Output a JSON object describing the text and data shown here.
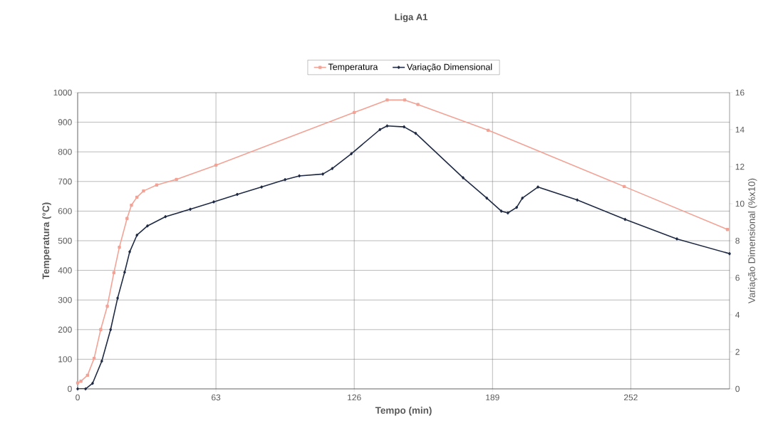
{
  "chart_data": {
    "type": "line",
    "title": "Liga A1",
    "xlabel": "Tempo (min)",
    "ylabel": "Temperatura (°C)",
    "y2label": "Variação Dimensional (%x10)",
    "legend": "top",
    "grid": true,
    "line_style": "solid",
    "xlim": [
      0,
      297
    ],
    "xticks": [
      0,
      63,
      126,
      189,
      252
    ],
    "ylim": [
      0,
      1000
    ],
    "yticks": [
      0,
      100,
      200,
      300,
      400,
      500,
      600,
      700,
      800,
      900,
      1000
    ],
    "y2lim": [
      0,
      16
    ],
    "y2ticks": [
      0,
      2,
      4,
      6,
      8,
      10,
      12,
      14,
      16
    ],
    "series": [
      {
        "name": "Temperatura",
        "color": "#f2a396",
        "marker": "square",
        "x": [
          0,
          1.5,
          4.5,
          7.5,
          10.5,
          13.5,
          16.5,
          19,
          22.5,
          24.5,
          27,
          30,
          36,
          45,
          63,
          126,
          141,
          149,
          155,
          187,
          249,
          296
        ],
        "values": [
          20,
          26,
          46,
          103,
          200,
          279,
          392,
          478,
          575,
          620,
          647,
          668,
          688,
          707,
          755,
          933,
          975,
          975,
          960,
          873,
          683,
          538
        ]
      },
      {
        "name": "Variação Dimensional",
        "color": "#1f2a44",
        "marker": "diamond",
        "axis": "y2",
        "x": [
          0,
          3.6,
          6.8,
          11,
          15,
          18.2,
          21.4,
          23.7,
          27,
          31.8,
          40,
          51.3,
          62,
          72.7,
          83.8,
          94.5,
          101,
          111.7,
          116,
          124.7,
          137.7,
          141,
          148.7,
          154,
          175.6,
          186.4,
          193,
          196,
          200,
          202.6,
          209.7,
          227.6,
          249.4,
          273,
          297
        ],
        "values": [
          0,
          0,
          0.3,
          1.5,
          3.2,
          4.9,
          6.3,
          7.4,
          8.3,
          8.8,
          9.3,
          9.7,
          10.1,
          10.5,
          10.9,
          11.3,
          11.5,
          11.6,
          11.9,
          12.7,
          14.0,
          14.2,
          14.15,
          13.8,
          11.4,
          10.3,
          9.6,
          9.5,
          9.8,
          10.3,
          10.9,
          10.2,
          9.15,
          8.1,
          7.3
        ]
      }
    ]
  }
}
